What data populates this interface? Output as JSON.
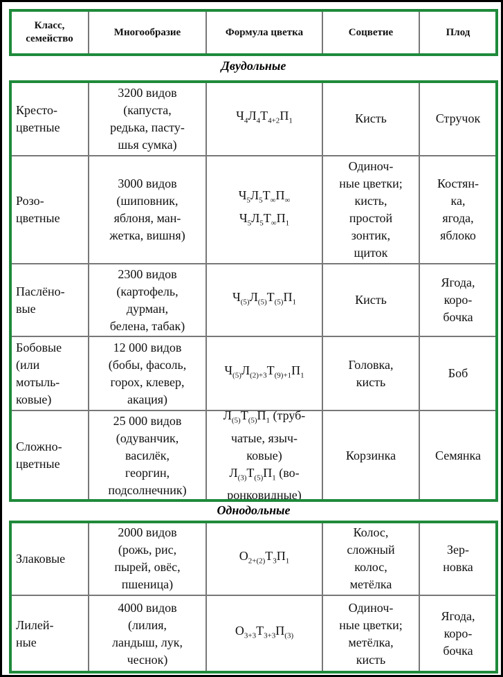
{
  "header": [
    "Класс,\nсемейство",
    "Многообразие",
    "Формула цветка",
    "Соцветие",
    "Плод"
  ],
  "sections": [
    {
      "title": "Двудольные",
      "rows": [
        {
          "family": "Кресто-\nцветные",
          "variety": "3200 видов\n(капуста,\nредька, пасту-\nшья сумка)",
          "formula": [
            [
              {
                "text": "Ч",
                "sub": "4"
              },
              {
                "text": "Л",
                "sub": "4"
              },
              {
                "text": "Т",
                "sub": "4+2"
              },
              {
                "text": "П",
                "sub": "1"
              }
            ]
          ],
          "inflorescence": "Кисть",
          "fruit": "Стручок"
        },
        {
          "family": "Розо-\nцветные",
          "variety": "3000 видов\n(шиповник,\nяблоня, ман-\nжетка, вишня)",
          "formula": [
            [
              {
                "text": "Ч",
                "sub": "5"
              },
              {
                "text": "Л",
                "sub": "5"
              },
              {
                "text": "Т",
                "sub": "∞"
              },
              {
                "text": "П",
                "sub": "∞"
              }
            ],
            [
              {
                "text": "Ч",
                "sub": "5"
              },
              {
                "text": "Л",
                "sub": "5"
              },
              {
                "text": "Т",
                "sub": "∞"
              },
              {
                "text": "П",
                "sub": "1"
              }
            ]
          ],
          "inflorescence": "Одиноч-\nные цветки;\nкисть,\nпростой\nзонтик,\nщиток",
          "fruit": "Костян-\nка,\nягода,\nяблоко"
        },
        {
          "family": "Паслёно-\nвые",
          "variety": "2300 видов\n(картофель,\nдурман,\nбелена, табак)",
          "formula": [
            [
              {
                "text": "Ч",
                "sub": "(5)"
              },
              {
                "text": "Л",
                "sub": "(5)"
              },
              {
                "text": "Т",
                "sub": "(5)"
              },
              {
                "text": "П",
                "sub": "1"
              }
            ]
          ],
          "inflorescence": "Кисть",
          "fruit": "Ягода,\nкоро-\nбочка"
        },
        {
          "family": "Бобовые\n(или\nмотыль-\nковые)",
          "variety": "12 000 видов\n(бобы, фасоль,\nгорох, клевер,\nакация)",
          "formula": [
            [
              {
                "text": "Ч",
                "sub": "(5)"
              },
              {
                "text": "Л",
                "sub": "(2)+3"
              },
              {
                "text": "Т",
                "sub": "(9)+1"
              },
              {
                "text": "П",
                "sub": "1"
              }
            ]
          ],
          "inflorescence": "Головка,\nкисть",
          "fruit": "Боб"
        },
        {
          "family": "Сложно-\nцветные",
          "variety": "25 000 видов\n(одуванчик,\nвасилёк,\nгеоргин,\nподсолнечник)",
          "formula": [
            [
              {
                "text": "Л",
                "sub": "(5)"
              },
              {
                "text": "Т",
                "sub": "(5)"
              },
              {
                "text": "П",
                "sub": "1"
              },
              {
                "text": " (труб-"
              }
            ],
            [
              {
                "text": "чатые, языч-"
              }
            ],
            [
              {
                "text": "ковые)"
              }
            ],
            [
              {
                "text": "Л",
                "sub": "(3)"
              },
              {
                "text": "Т",
                "sub": "(5)"
              },
              {
                "text": "П",
                "sub": "1"
              },
              {
                "text": " (во-"
              }
            ],
            [
              {
                "text": "ронковидные)"
              }
            ]
          ],
          "inflorescence": "Корзинка",
          "fruit": "Семянка"
        }
      ]
    },
    {
      "title": "Однодольные",
      "rows": [
        {
          "family": "Злаковые",
          "variety": "2000 видов\n(рожь, рис,\nпырей, овёс,\nпшеница)",
          "formula": [
            [
              {
                "text": "О",
                "sub": "2+(2)"
              },
              {
                "text": "Т",
                "sub": "3"
              },
              {
                "text": "П",
                "sub": "1"
              }
            ]
          ],
          "inflorescence": "Колос,\nсложный\nколос,\nметёлка",
          "fruit": "Зер-\nновка"
        },
        {
          "family": "Лилей-\nные",
          "variety": "4000 видов\n(лилия,\nландыш, лук,\nчеснок)",
          "formula": [
            [
              {
                "text": "О",
                "sub": "3+3"
              },
              {
                "text": "Т",
                "sub": "3+3"
              },
              {
                "text": "П",
                "sub": "(3)"
              }
            ]
          ],
          "inflorescence": "Одиноч-\nные цветки;\nметёлка,\nкисть",
          "fruit": "Ягода,\nкоро-\nбочка"
        }
      ]
    }
  ]
}
